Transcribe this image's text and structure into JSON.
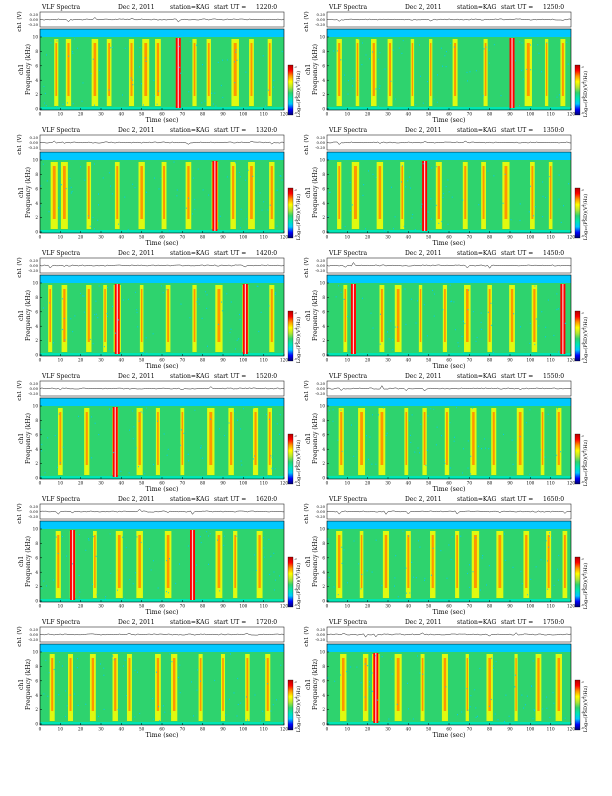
{
  "page": {
    "background": "#ffffff"
  },
  "common": {
    "title_left": "VLF Spectra",
    "date": "Dec 2, 2011",
    "station": "station=KAG",
    "ut_prefix": "start  UT =",
    "waveform_ylabel": "ch1 (V)",
    "waveform_ticks": [
      "0.20",
      "0.00",
      "-0.20"
    ],
    "spec_ylabel_top": "ch1",
    "spec_ylabel": "Frequency  (kHz)",
    "freq_ticks": [
      "0",
      "2",
      "4",
      "6",
      "8",
      "10"
    ],
    "time_ticks": [
      "0",
      "10",
      "20",
      "30",
      "40",
      "50",
      "60",
      "70",
      "80",
      "90",
      "100",
      "110",
      "120"
    ],
    "xlabel": "Time  (sec)",
    "colorbar_label": "Log₁₀(PSD)(V²/Hz)",
    "colorbar_ticks": [
      "-2",
      "-4",
      "-6",
      "-8"
    ],
    "colormap": [
      "#00006e",
      "#0000ff",
      "#00c8ff",
      "#00e6b4",
      "#2ed36e",
      "#b4e632",
      "#ffff00",
      "#ff9600",
      "#ff0000",
      "#b40000"
    ]
  },
  "panels": [
    {
      "ut": "1220:0"
    },
    {
      "ut": "1250:0"
    },
    {
      "ut": "1320:0"
    },
    {
      "ut": "1350:0"
    },
    {
      "ut": "1420:0"
    },
    {
      "ut": "1450:0"
    },
    {
      "ut": "1520:0"
    },
    {
      "ut": "1550:0"
    },
    {
      "ut": "1620:0"
    },
    {
      "ut": "1650:0"
    },
    {
      "ut": "1720:0"
    },
    {
      "ut": "1750:0"
    }
  ],
  "chart_data": {
    "type": "heatmap",
    "title": "VLF Spectra",
    "xlabel": "Time  (sec)",
    "ylabel": "Frequency  (kHz)",
    "xlim": [
      0,
      120
    ],
    "ylim": [
      0,
      10
    ],
    "colorbar_label": "Log₁₀(PSD)(V²/Hz)",
    "colorbar_ticks": [
      -2,
      -4,
      -6,
      -8
    ],
    "panels": [
      {
        "start_ut": "1220:0",
        "spheric_bursts_sec": [
          8,
          14,
          27,
          34,
          45,
          52,
          58,
          68,
          76,
          83,
          96,
          104,
          113
        ],
        "strong_bursts_sec": [
          68
        ]
      },
      {
        "start_ut": "1250:0",
        "spheric_bursts_sec": [
          6,
          15,
          23,
          31,
          42,
          51,
          63,
          78,
          91,
          99,
          108,
          116
        ],
        "strong_bursts_sec": [
          91
        ]
      },
      {
        "start_ut": "1320:0",
        "spheric_bursts_sec": [
          7,
          12,
          24,
          38,
          50,
          61,
          73,
          86,
          95,
          104,
          114
        ],
        "strong_bursts_sec": [
          86
        ]
      },
      {
        "start_ut": "1350:0",
        "spheric_bursts_sec": [
          6,
          14,
          26,
          37,
          48,
          55,
          68,
          77,
          88,
          101,
          110
        ],
        "strong_bursts_sec": [
          48
        ]
      },
      {
        "start_ut": "1420:0",
        "spheric_bursts_sec": [
          5,
          12,
          24,
          32,
          38,
          50,
          63,
          76,
          88,
          101,
          114
        ],
        "strong_bursts_sec": [
          38,
          101
        ]
      },
      {
        "start_ut": "1450:0",
        "spheric_bursts_sec": [
          9,
          13,
          27,
          35,
          46,
          58,
          69,
          80,
          91,
          102,
          116
        ],
        "strong_bursts_sec": [
          13,
          116
        ]
      },
      {
        "start_ut": "1520:0",
        "spheric_bursts_sec": [
          10,
          23,
          37,
          49,
          58,
          70,
          84,
          94,
          106,
          113
        ],
        "strong_bursts_sec": [
          37
        ]
      },
      {
        "start_ut": "1550:0",
        "spheric_bursts_sec": [
          7,
          17,
          27,
          39,
          48,
          59,
          72,
          82,
          95,
          106,
          114
        ],
        "strong_bursts_sec": []
      },
      {
        "start_ut": "1620:0",
        "spheric_bursts_sec": [
          9,
          16,
          27,
          39,
          49,
          63,
          75,
          88,
          96,
          108
        ],
        "strong_bursts_sec": [
          16,
          75
        ]
      },
      {
        "start_ut": "1650:0",
        "spheric_bursts_sec": [
          6,
          17,
          29,
          40,
          52,
          64,
          73,
          85,
          98,
          109,
          117
        ],
        "strong_bursts_sec": []
      },
      {
        "start_ut": "1720:0",
        "spheric_bursts_sec": [
          6,
          15,
          26,
          37,
          44,
          58,
          66,
          79,
          90,
          102,
          112
        ],
        "strong_bursts_sec": []
      },
      {
        "start_ut": "1750:0",
        "spheric_bursts_sec": [
          8,
          19,
          24,
          35,
          47,
          58,
          69,
          80,
          93,
          104,
          114
        ],
        "strong_bursts_sec": [
          24
        ]
      }
    ]
  }
}
